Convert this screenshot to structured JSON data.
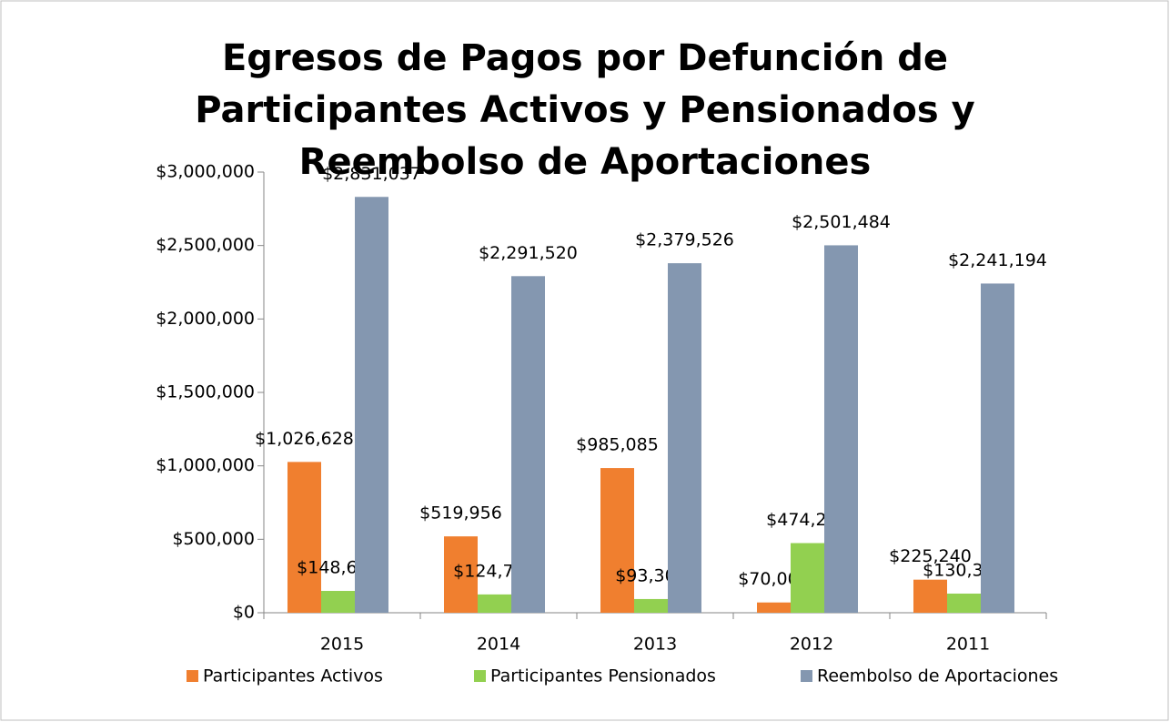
{
  "chart_data": {
    "type": "bar",
    "title": "Egresos de Pagos por Defunción de Participantes Activos y Pensionados y Reembolso de Aportaciones",
    "categories": [
      "2015",
      "2014",
      "2013",
      "2012",
      "2011"
    ],
    "series": [
      {
        "name": "Participantes Activos",
        "color": "#f07f2f",
        "values": [
          1026628,
          519956,
          985085,
          70000,
          225240
        ],
        "value_labels": [
          "$1,026,628",
          "$519,956",
          "$985,085",
          "$70,000",
          "$225,240"
        ]
      },
      {
        "name": "Participantes Pensionados",
        "color": "#92d050",
        "values": [
          148681,
          124717,
          93300,
          474233,
          130365
        ],
        "value_labels": [
          "$148,681",
          "$124,717",
          "$93,300",
          "$474,233",
          "$130,365"
        ]
      },
      {
        "name": "Reembolso de Aportaciones",
        "color": "#8497b0",
        "values": [
          2831037,
          2291520,
          2379526,
          2501484,
          2241194
        ],
        "value_labels": [
          "$2,831,037",
          "$2,291,520",
          "$2,379,526",
          "$2,501,484",
          "$2,241,194"
        ]
      }
    ],
    "ylim": [
      0,
      3000000
    ],
    "yticks": [
      {
        "value": 0,
        "label": "$0"
      },
      {
        "value": 500000,
        "label": "$500,000"
      },
      {
        "value": 1000000,
        "label": "$1,000,000"
      },
      {
        "value": 1500000,
        "label": "$1,500,000"
      },
      {
        "value": 2000000,
        "label": "$2,000,000"
      },
      {
        "value": 2500000,
        "label": "$2,500,000"
      },
      {
        "value": 3000000,
        "label": "$3,000,000"
      }
    ],
    "legend": "bottom"
  }
}
